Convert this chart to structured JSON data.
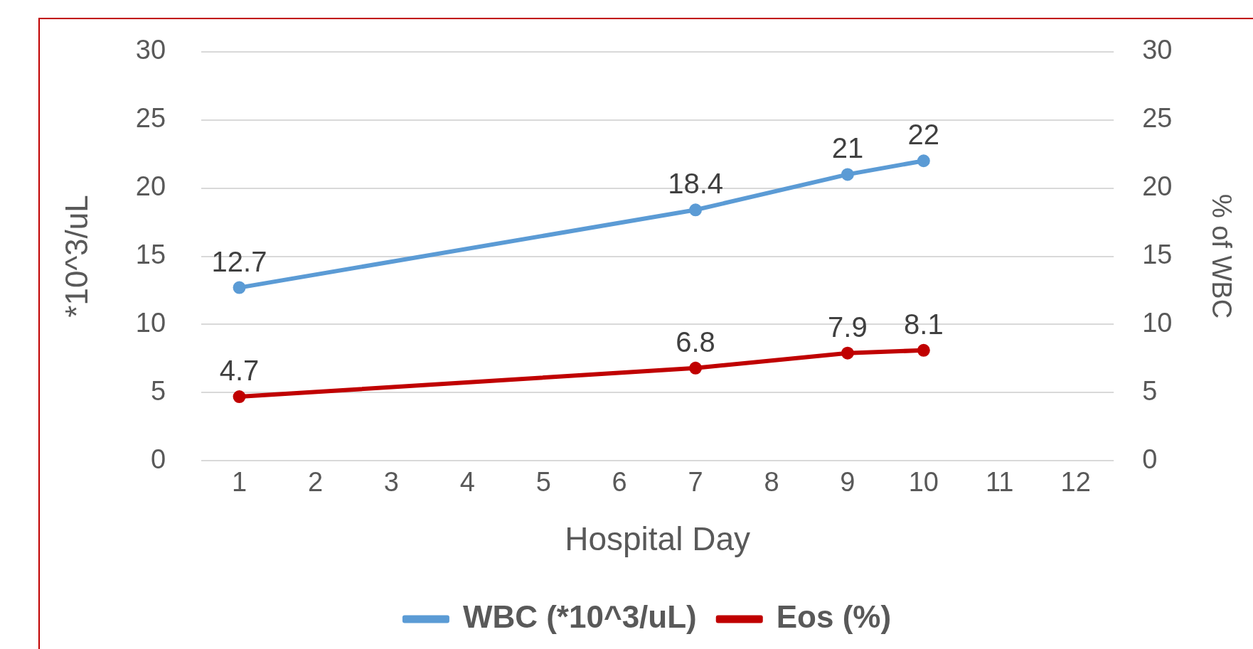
{
  "chart_data": {
    "type": "line",
    "xlabel": "Hospital Day",
    "ylabel": "*10^3/uL",
    "y2label": "% of WBC",
    "x": [
      1,
      7,
      9,
      10
    ],
    "xlim": [
      0.5,
      12.5
    ],
    "xticks": [
      1,
      2,
      3,
      4,
      5,
      6,
      7,
      8,
      9,
      10,
      11,
      12
    ],
    "ylim": [
      0,
      30
    ],
    "yticks": [
      0,
      5,
      10,
      15,
      20,
      25,
      30
    ],
    "y2lim": [
      0,
      30
    ],
    "y2ticks": [
      0,
      5,
      10,
      15,
      20,
      25,
      30
    ],
    "series": [
      {
        "name": "WBC (*10^3/uL)",
        "color": "#5b9bd5",
        "values": [
          12.7,
          18.4,
          21,
          22
        ]
      },
      {
        "name": "Eos (%)",
        "color": "#c00000",
        "values": [
          4.7,
          6.8,
          7.9,
          8.1
        ],
        "axis": "y2"
      }
    ],
    "grid": "y",
    "legend": "bottom",
    "marker": "circle",
    "line_style": "solid",
    "data_labels": true
  }
}
